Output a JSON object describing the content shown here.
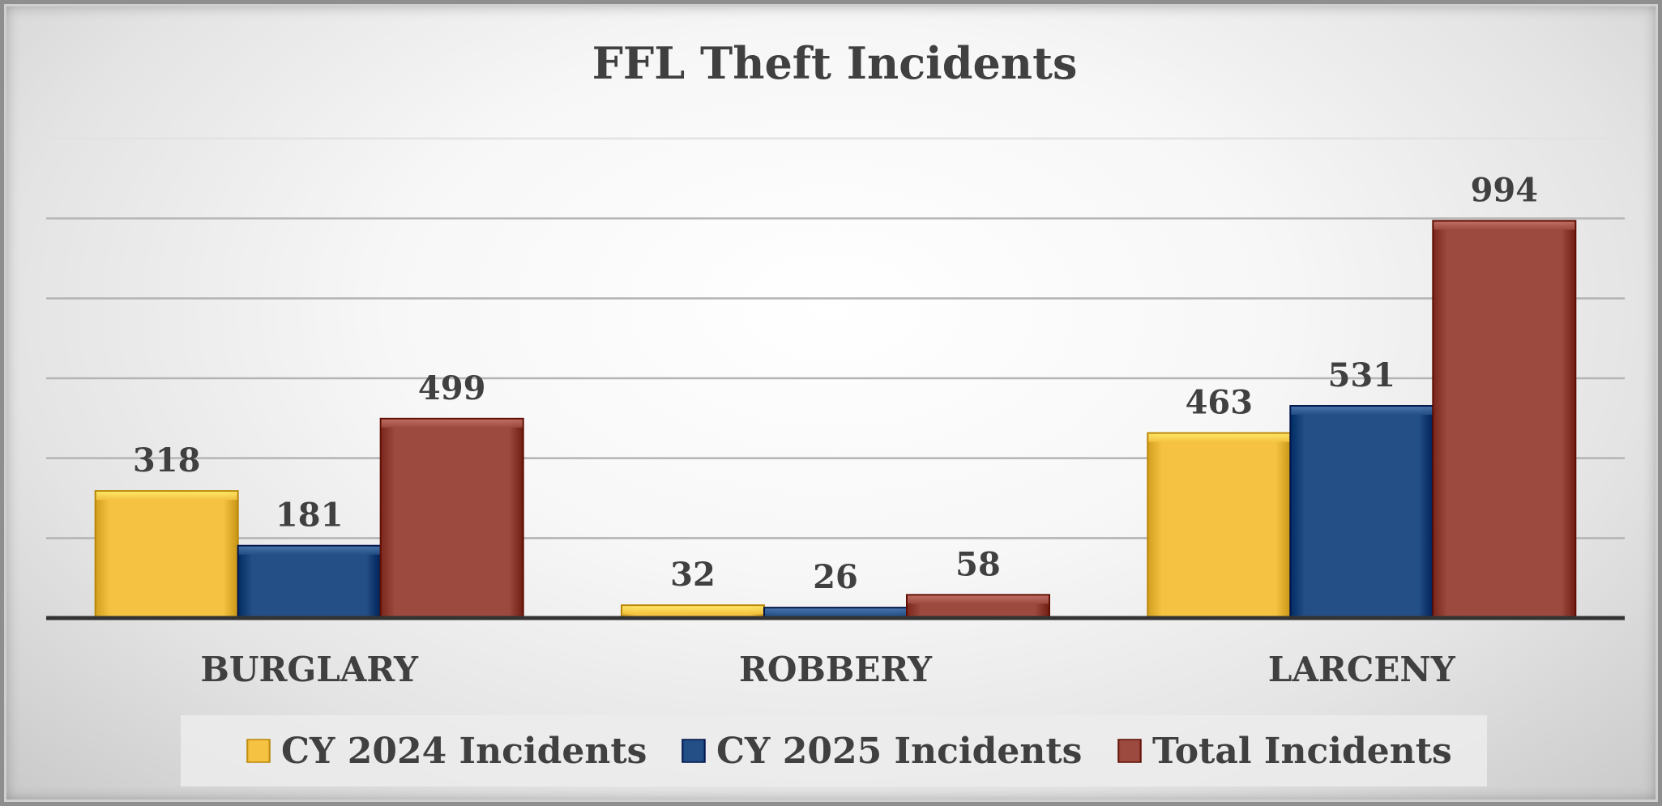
{
  "chart_data": {
    "type": "bar",
    "title": "FFL Theft Incidents",
    "xlabel": "",
    "ylabel": "",
    "categories": [
      "BURGLARY",
      "ROBBERY",
      "LARCENY"
    ],
    "series": [
      {
        "name": "CY 2024 Incidents",
        "values": [
          318,
          32,
          463
        ],
        "color": "#f5c242"
      },
      {
        "name": "CY 2025 Incidents",
        "values": [
          181,
          26,
          531
        ],
        "color": "#244f86"
      },
      {
        "name": "Total Incidents",
        "values": [
          499,
          58,
          994
        ],
        "color": "#9c4a3f"
      }
    ],
    "ylim": [
      0,
      1200
    ],
    "y_gridline_step": 200,
    "y_axis_labels_shown": false,
    "grid": true,
    "data_labels": true,
    "legend_position": "bottom"
  }
}
